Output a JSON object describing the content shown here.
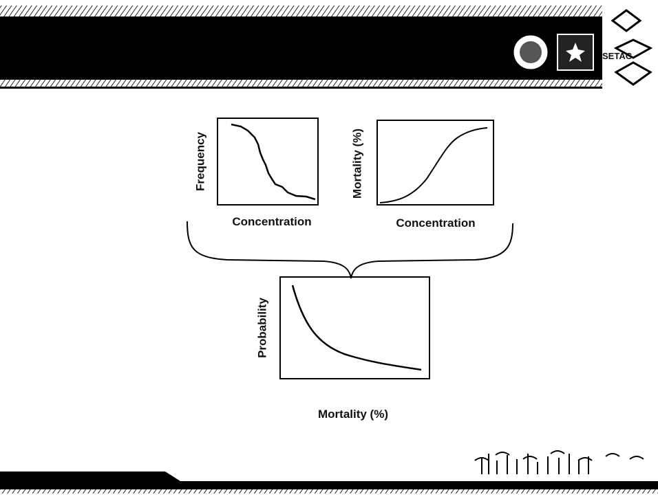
{
  "panels": [
    {
      "y_label": "Frequency",
      "x_label": "Concentration"
    },
    {
      "y_label": "Mortality (%)",
      "x_label": "Concentration"
    },
    {
      "y_label": "Probability",
      "x_label": "Mortality (%)"
    }
  ],
  "logo": {
    "text": "SETAC"
  }
}
